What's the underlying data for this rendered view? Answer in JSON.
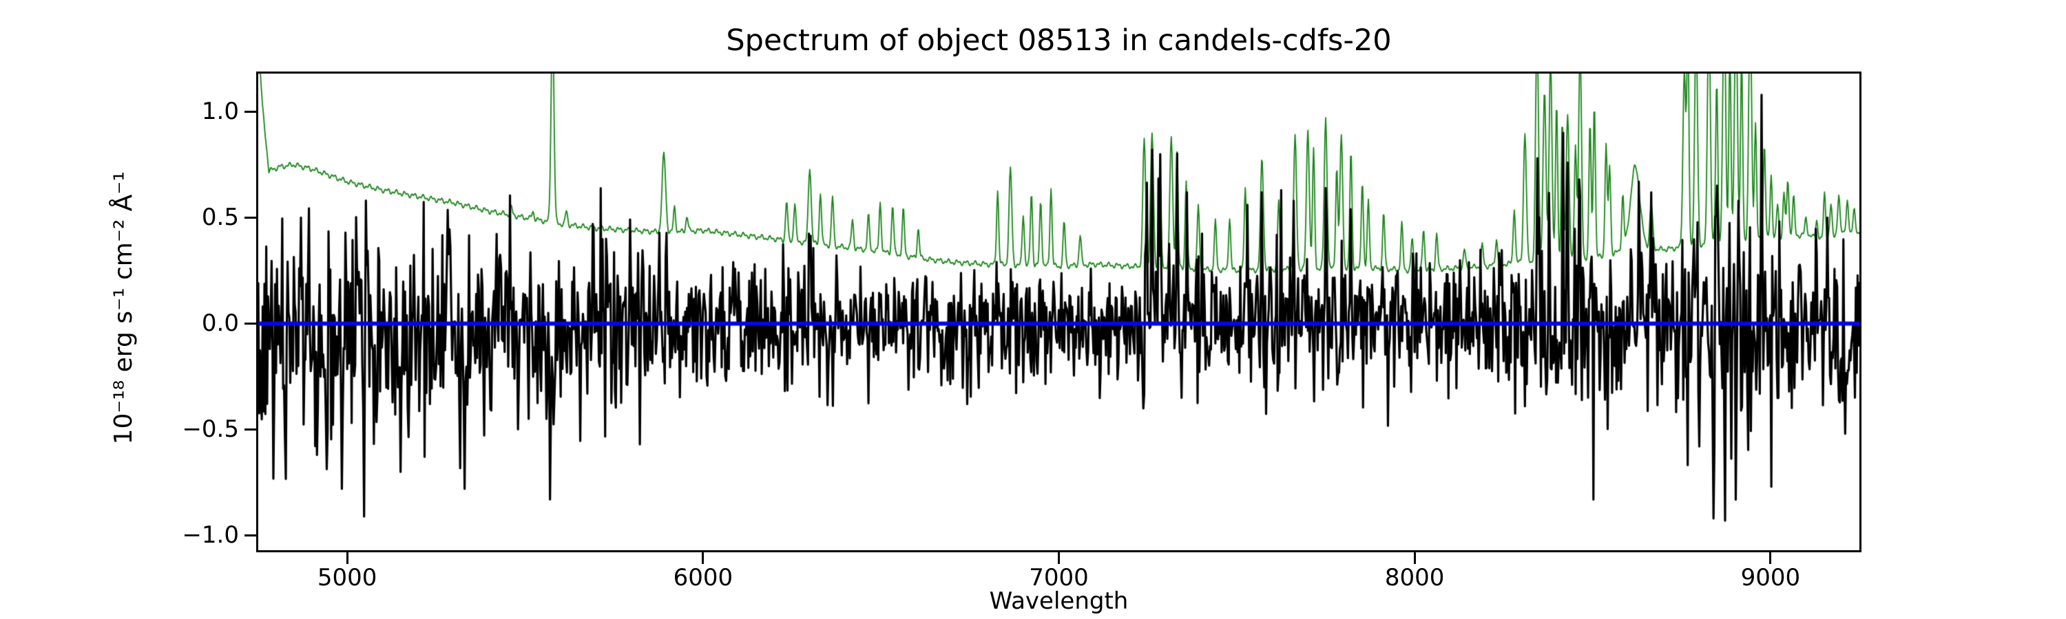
{
  "chart_data": {
    "type": "line",
    "title": "Spectrum of object 08513 in candels-cdfs-20",
    "xlabel": "Wavelength",
    "ylabel": "10⁻¹⁸ erg s⁻¹ cm⁻² Å⁻¹",
    "xlim": [
      4750,
      9250
    ],
    "ylim": [
      -1.07,
      1.18
    ],
    "xticks": [
      5000,
      6000,
      7000,
      8000,
      9000
    ],
    "xtick_labels": [
      "5000",
      "6000",
      "7000",
      "8000",
      "9000"
    ],
    "yticks": [
      1.0,
      0.5,
      0.0,
      -0.5,
      -1.0
    ],
    "ytick_labels": [
      "1.0",
      "0.5",
      "0.0",
      "−0.5",
      "−1.0"
    ],
    "grid": false,
    "legend": null,
    "axis_color": "#000000",
    "background": "#ffffff",
    "series": [
      {
        "name": "error-spectrum",
        "kind": "error_curve",
        "color": "#168416",
        "linewidth": 1.8,
        "sample_step": 2.0,
        "wiggle": {
          "amp1": 0.008,
          "freq1": 0.251,
          "amp2": 0.006,
          "freq2": 0.587,
          "phase2": 1.3
        },
        "continuum_points": [
          [
            4750,
            1.35
          ],
          [
            4762,
            1.02
          ],
          [
            4780,
            0.72
          ],
          [
            4810,
            0.74
          ],
          [
            4850,
            0.75
          ],
          [
            4900,
            0.73
          ],
          [
            4950,
            0.7
          ],
          [
            5000,
            0.67
          ],
          [
            5100,
            0.63
          ],
          [
            5200,
            0.6
          ],
          [
            5300,
            0.57
          ],
          [
            5400,
            0.53
          ],
          [
            5500,
            0.5
          ],
          [
            5600,
            0.47
          ],
          [
            5700,
            0.45
          ],
          [
            5800,
            0.44
          ],
          [
            5900,
            0.43
          ],
          [
            6000,
            0.44
          ],
          [
            6100,
            0.42
          ],
          [
            6200,
            0.4
          ],
          [
            6300,
            0.38
          ],
          [
            6400,
            0.36
          ],
          [
            6500,
            0.34
          ],
          [
            6600,
            0.31
          ],
          [
            6700,
            0.29
          ],
          [
            6800,
            0.28
          ],
          [
            6900,
            0.275
          ],
          [
            7000,
            0.27
          ],
          [
            7100,
            0.28
          ],
          [
            7200,
            0.27
          ],
          [
            7350,
            0.26
          ],
          [
            7500,
            0.25
          ],
          [
            7700,
            0.26
          ],
          [
            7900,
            0.26
          ],
          [
            8000,
            0.25
          ],
          [
            8100,
            0.26
          ],
          [
            8200,
            0.27
          ],
          [
            8300,
            0.29
          ],
          [
            8400,
            0.3
          ],
          [
            8500,
            0.31
          ],
          [
            8560,
            0.33
          ],
          [
            8600,
            0.36
          ],
          [
            8700,
            0.35
          ],
          [
            8800,
            0.37
          ],
          [
            8900,
            0.39
          ],
          [
            9000,
            0.4
          ],
          [
            9050,
            0.41
          ],
          [
            9100,
            0.42
          ],
          [
            9150,
            0.39
          ],
          [
            9200,
            0.44
          ],
          [
            9250,
            0.42
          ]
        ],
        "sky_lines": [
          [
            5199,
            0.56,
            3
          ],
          [
            5240,
            0.53,
            3
          ],
          [
            5461,
            0.55,
            3
          ],
          [
            5522,
            0.53,
            3
          ],
          [
            5577,
            1.45,
            4
          ],
          [
            5616,
            0.53,
            3
          ],
          [
            5890,
            0.8,
            5
          ],
          [
            5920,
            0.55,
            3
          ],
          [
            5955,
            0.51,
            3
          ],
          [
            6235,
            0.58,
            3
          ],
          [
            6258,
            0.57,
            3
          ],
          [
            6300,
            0.74,
            4
          ],
          [
            6330,
            0.62,
            3
          ],
          [
            6364,
            0.6,
            3
          ],
          [
            6420,
            0.49,
            3
          ],
          [
            6465,
            0.51,
            3
          ],
          [
            6498,
            0.57,
            3
          ],
          [
            6533,
            0.56,
            3
          ],
          [
            6563,
            0.54,
            3
          ],
          [
            6605,
            0.45,
            3
          ],
          [
            6828,
            0.63,
            3
          ],
          [
            6864,
            0.73,
            4
          ],
          [
            6900,
            0.52,
            3
          ],
          [
            6923,
            0.62,
            3
          ],
          [
            6949,
            0.58,
            3
          ],
          [
            6978,
            0.64,
            3
          ],
          [
            7015,
            0.48,
            3
          ],
          [
            7060,
            0.42,
            3
          ],
          [
            7240,
            0.87,
            4
          ],
          [
            7262,
            0.9,
            4
          ],
          [
            7284,
            0.74,
            3
          ],
          [
            7316,
            0.88,
            4
          ],
          [
            7332,
            0.81,
            3
          ],
          [
            7358,
            0.68,
            3
          ],
          [
            7392,
            0.56,
            3
          ],
          [
            7440,
            0.48,
            3
          ],
          [
            7480,
            0.5,
            3
          ],
          [
            7524,
            0.64,
            3
          ],
          [
            7571,
            0.78,
            4
          ],
          [
            7618,
            0.58,
            3
          ],
          [
            7664,
            0.88,
            4
          ],
          [
            7700,
            0.92,
            4
          ],
          [
            7716,
            0.82,
            3
          ],
          [
            7750,
            0.97,
            4
          ],
          [
            7781,
            0.74,
            3
          ],
          [
            7794,
            0.88,
            4
          ],
          [
            7821,
            0.82,
            3
          ],
          [
            7853,
            0.68,
            3
          ],
          [
            7870,
            0.58,
            3
          ],
          [
            7913,
            0.52,
            3
          ],
          [
            7964,
            0.47,
            3
          ],
          [
            7993,
            0.4,
            3
          ],
          [
            8025,
            0.45,
            3
          ],
          [
            8062,
            0.42,
            3
          ],
          [
            8140,
            0.35,
            3
          ],
          [
            8190,
            0.37,
            3
          ],
          [
            8230,
            0.4,
            3
          ],
          [
            8280,
            0.55,
            3
          ],
          [
            8310,
            0.9,
            4
          ],
          [
            8344,
            1.4,
            4
          ],
          [
            8365,
            1.1,
            4
          ],
          [
            8382,
            1.25,
            4
          ],
          [
            8399,
            1.05,
            3
          ],
          [
            8415,
            0.95,
            3
          ],
          [
            8430,
            1.0,
            4
          ],
          [
            8452,
            0.85,
            3
          ],
          [
            8465,
            1.3,
            4
          ],
          [
            8493,
            0.95,
            3
          ],
          [
            8505,
            1.05,
            3
          ],
          [
            8538,
            0.85,
            3
          ],
          [
            8548,
            0.75,
            3
          ],
          [
            8585,
            0.6,
            3
          ],
          [
            8620,
            0.74,
            13
          ],
          [
            8665,
            0.56,
            4
          ],
          [
            8758,
            1.2,
            4
          ],
          [
            8768,
            1.35,
            3
          ],
          [
            8791,
            1.4,
            4
          ],
          [
            8827,
            1.5,
            4
          ],
          [
            8849,
            1.15,
            3
          ],
          [
            8870,
            1.55,
            4
          ],
          [
            8886,
            1.3,
            3
          ],
          [
            8903,
            1.55,
            4
          ],
          [
            8919,
            1.25,
            3
          ],
          [
            8943,
            1.5,
            4
          ],
          [
            8958,
            0.95,
            3
          ],
          [
            8983,
            0.85,
            3
          ],
          [
            9002,
            0.7,
            3
          ],
          [
            9020,
            0.56,
            3
          ],
          [
            9038,
            0.62,
            3
          ],
          [
            9049,
            0.68,
            3
          ],
          [
            9065,
            0.6,
            3
          ],
          [
            9100,
            0.5,
            3
          ],
          [
            9130,
            0.49,
            3
          ],
          [
            9152,
            0.62,
            3
          ],
          [
            9170,
            0.56,
            3
          ],
          [
            9192,
            0.6,
            3
          ],
          [
            9216,
            0.57,
            3
          ],
          [
            9235,
            0.55,
            3
          ]
        ]
      },
      {
        "name": "flux-spectrum",
        "kind": "flux_noise",
        "color": "#000000",
        "linewidth": 3.2,
        "sample_step": 2.5,
        "noise_seed": 8513,
        "skyline_noise_factor": 0.22,
        "sigma_envelope": [
          [
            4750,
            0.27
          ],
          [
            4900,
            0.27
          ],
          [
            5000,
            0.26
          ],
          [
            5200,
            0.24
          ],
          [
            5400,
            0.22
          ],
          [
            5600,
            0.19
          ],
          [
            5800,
            0.18
          ],
          [
            6000,
            0.17
          ],
          [
            6200,
            0.16
          ],
          [
            6400,
            0.15
          ],
          [
            6600,
            0.14
          ],
          [
            6800,
            0.13
          ],
          [
            7000,
            0.13
          ],
          [
            7200,
            0.15
          ],
          [
            7300,
            0.17
          ],
          [
            7500,
            0.16
          ],
          [
            7700,
            0.16
          ],
          [
            7900,
            0.15
          ],
          [
            8100,
            0.15
          ],
          [
            8300,
            0.17
          ],
          [
            8500,
            0.18
          ],
          [
            8700,
            0.19
          ],
          [
            8900,
            0.21
          ],
          [
            9100,
            0.21
          ],
          [
            9250,
            0.2
          ]
        ],
        "mean_offset": [
          [
            4750,
            -0.06
          ],
          [
            5400,
            -0.05
          ],
          [
            5900,
            -0.02
          ],
          [
            6300,
            0.0
          ],
          [
            9250,
            0.0
          ]
        ],
        "features": [
          [
            4827,
            -0.75,
            4
          ],
          [
            4870,
            0.5,
            4
          ],
          [
            4915,
            -0.62,
            4
          ],
          [
            4985,
            -0.78,
            4
          ],
          [
            5047,
            -0.95,
            4
          ],
          [
            5150,
            -0.7,
            4
          ],
          [
            5283,
            0.58,
            4
          ],
          [
            5330,
            -0.78,
            4
          ],
          [
            5429,
            0.49,
            4
          ],
          [
            5560,
            -0.45,
            4
          ],
          [
            5690,
            0.47,
            4
          ],
          [
            5877,
            0.46,
            4
          ],
          [
            6302,
            0.42,
            4
          ],
          [
            7247,
            0.7,
            4
          ],
          [
            7262,
            0.86,
            4
          ],
          [
            7285,
            0.8,
            4
          ],
          [
            7333,
            0.84,
            4
          ],
          [
            7360,
            0.62,
            4
          ],
          [
            7530,
            0.56,
            4
          ],
          [
            7570,
            0.62,
            4
          ],
          [
            7625,
            0.63,
            4
          ],
          [
            7660,
            0.58,
            4
          ],
          [
            7750,
            0.64,
            4
          ],
          [
            7820,
            0.54,
            4
          ],
          [
            8345,
            0.78,
            4
          ],
          [
            8430,
            0.76,
            4
          ],
          [
            8630,
            0.67,
            4
          ],
          [
            8665,
            0.62,
            4
          ],
          [
            8800,
            -0.58,
            4
          ],
          [
            8840,
            -0.92,
            4
          ],
          [
            8872,
            -0.97,
            4
          ],
          [
            8910,
            0.58,
            4
          ],
          [
            8975,
            1.08,
            4
          ],
          [
            9160,
            0.5,
            4
          ],
          [
            9210,
            -0.52,
            4
          ]
        ]
      },
      {
        "name": "zero-flux-baseline",
        "kind": "hline",
        "y": 0.0,
        "color": "#0606e6",
        "linewidth": 6
      }
    ]
  }
}
